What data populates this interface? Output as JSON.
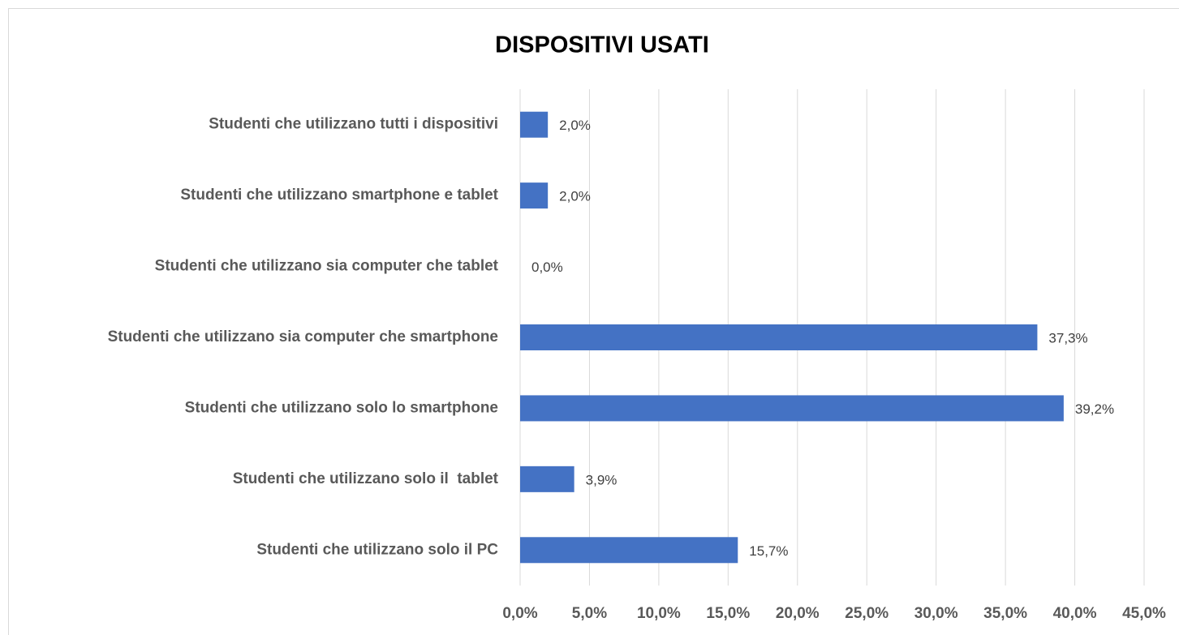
{
  "chart_data": {
    "type": "barh",
    "title": "DISPOSITIVI USATI",
    "categories": [
      "Studenti che utilizzano tutti i dispositivi",
      "Studenti che utilizzano smartphone e tablet",
      "Studenti che utilizzano sia computer che tablet",
      "Studenti che utilizzano sia computer che smartphone",
      "Studenti che utilizzano solo lo smartphone",
      "Studenti che utilizzano solo il  tablet",
      "Studenti che utilizzano solo il PC"
    ],
    "values": [
      2.0,
      2.0,
      0.0,
      37.3,
      39.2,
      3.9,
      15.7
    ],
    "value_labels": [
      "2,0%",
      "2,0%",
      "0,0%",
      "37,3%",
      "39,2%",
      "3,9%",
      "15,7%"
    ],
    "color": "#4472c4",
    "xlim": [
      0,
      45
    ],
    "xticks": [
      {
        "value": 0,
        "label": "0,0%"
      },
      {
        "value": 5,
        "label": "5,0%"
      },
      {
        "value": 10,
        "label": "10,0%"
      },
      {
        "value": 15,
        "label": "15,0%"
      },
      {
        "value": 20,
        "label": "20,0%"
      },
      {
        "value": 25,
        "label": "25,0%"
      },
      {
        "value": 30,
        "label": "30,0%"
      },
      {
        "value": 35,
        "label": "35,0%"
      },
      {
        "value": 40,
        "label": "40,0%"
      },
      {
        "value": 45,
        "label": "45,0%"
      }
    ],
    "grid": true
  }
}
